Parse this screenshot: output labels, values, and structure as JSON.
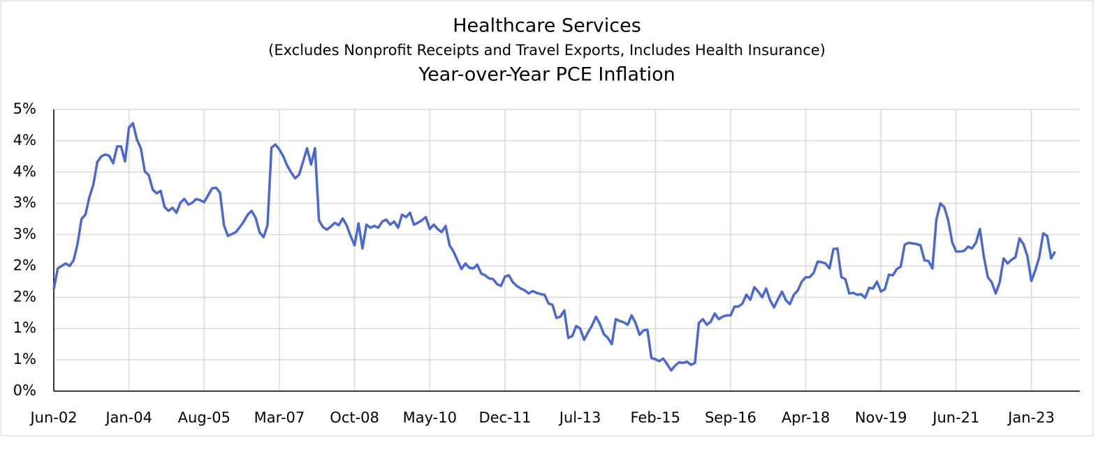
{
  "chart_data": {
    "type": "line",
    "title": "Healthcare Services",
    "subtitle": "(Excludes Nonprofit Receipts and Travel Exports, Includes Health Insurance)",
    "subtitle_2": "Year-over-Year PCE Inflation",
    "categories": [
      "Jun-02",
      null,
      null,
      null,
      null,
      null,
      null,
      null,
      null,
      null,
      null,
      null,
      null,
      null,
      null,
      null,
      null,
      null,
      null,
      "Jan-04",
      null,
      null,
      null,
      null,
      null,
      null,
      null,
      null,
      null,
      null,
      null,
      null,
      null,
      null,
      null,
      null,
      null,
      null,
      "Aug-05",
      null,
      null,
      null,
      null,
      null,
      null,
      null,
      null,
      null,
      null,
      null,
      null,
      null,
      null,
      null,
      null,
      null,
      null,
      "Mar-07",
      null,
      null,
      null,
      null,
      null,
      null,
      null,
      null,
      null,
      null,
      null,
      null,
      null,
      null,
      null,
      null,
      null,
      null,
      "Oct-08",
      null,
      null,
      null,
      null,
      null,
      null,
      null,
      null,
      null,
      null,
      null,
      null,
      null,
      null,
      null,
      null,
      null,
      null,
      "May-10",
      null,
      null,
      null,
      null,
      null,
      null,
      null,
      null,
      null,
      null,
      null,
      null,
      null,
      null,
      null,
      null,
      null,
      null,
      "Dec-11",
      null,
      null,
      null,
      null,
      null,
      null,
      null,
      null,
      null,
      null,
      null,
      null,
      null,
      null,
      null,
      null,
      null,
      null,
      "Jul-13",
      null,
      null,
      null,
      null,
      null,
      null,
      null,
      null,
      null,
      null,
      null,
      null,
      null,
      null,
      null,
      null,
      null,
      null,
      "Feb-15",
      null,
      null,
      null,
      null,
      null,
      null,
      null,
      null,
      null,
      null,
      null,
      null,
      null,
      null,
      null,
      null,
      null,
      null,
      "Sep-16",
      null,
      null,
      null,
      null,
      null,
      null,
      null,
      null,
      null,
      null,
      null,
      null,
      null,
      null,
      null,
      null,
      null,
      null,
      "Apr-18",
      null,
      null,
      null,
      null,
      null,
      null,
      null,
      null,
      null,
      null,
      null,
      null,
      null,
      null,
      null,
      null,
      null,
      null,
      "Nov-19",
      null,
      null,
      null,
      null,
      null,
      null,
      null,
      null,
      null,
      null,
      null,
      null,
      null,
      null,
      null,
      null,
      null,
      null,
      "Jun-21",
      null,
      null,
      null,
      null,
      null,
      null,
      null,
      null,
      null,
      null,
      null,
      null,
      null,
      null,
      null,
      null,
      null,
      null,
      "Jan-23",
      null,
      null,
      null,
      null,
      null,
      null
    ],
    "values": [
      1.63,
      1.96,
      2.0,
      2.04,
      2.0,
      2.09,
      2.35,
      2.75,
      2.82,
      3.1,
      3.3,
      3.66,
      3.75,
      3.78,
      3.76,
      3.64,
      3.91,
      3.91,
      3.67,
      4.21,
      4.28,
      4.02,
      3.88,
      3.51,
      3.45,
      3.22,
      3.16,
      3.2,
      2.94,
      2.88,
      2.93,
      2.85,
      3.01,
      3.07,
      2.98,
      3.01,
      3.07,
      3.05,
      3.02,
      3.13,
      3.24,
      3.25,
      3.17,
      2.65,
      2.48,
      2.51,
      2.54,
      2.62,
      2.71,
      2.82,
      2.88,
      2.77,
      2.54,
      2.46,
      2.65,
      3.89,
      3.94,
      3.86,
      3.75,
      3.6,
      3.49,
      3.4,
      3.46,
      3.67,
      3.88,
      3.62,
      3.88,
      2.73,
      2.62,
      2.58,
      2.63,
      2.69,
      2.65,
      2.76,
      2.65,
      2.48,
      2.33,
      2.68,
      2.28,
      2.66,
      2.61,
      2.64,
      2.61,
      2.71,
      2.74,
      2.66,
      2.71,
      2.61,
      2.82,
      2.78,
      2.85,
      2.66,
      2.69,
      2.73,
      2.78,
      2.59,
      2.66,
      2.59,
      2.54,
      2.64,
      2.33,
      2.23,
      2.09,
      1.95,
      2.04,
      1.97,
      1.96,
      2.02,
      1.88,
      1.85,
      1.8,
      1.79,
      1.71,
      1.68,
      1.83,
      1.85,
      1.74,
      1.68,
      1.64,
      1.61,
      1.56,
      1.6,
      1.57,
      1.55,
      1.54,
      1.4,
      1.38,
      1.17,
      1.19,
      1.29,
      0.85,
      0.88,
      1.04,
      1.0,
      0.82,
      0.94,
      1.05,
      1.19,
      1.07,
      0.91,
      0.85,
      0.75,
      1.15,
      1.12,
      1.1,
      1.06,
      1.21,
      1.09,
      0.9,
      0.97,
      0.98,
      0.53,
      0.51,
      0.48,
      0.52,
      0.43,
      0.33,
      0.41,
      0.46,
      0.45,
      0.47,
      0.42,
      0.45,
      1.09,
      1.15,
      1.06,
      1.11,
      1.24,
      1.15,
      1.19,
      1.21,
      1.21,
      1.35,
      1.35,
      1.4,
      1.54,
      1.46,
      1.66,
      1.59,
      1.5,
      1.64,
      1.45,
      1.34,
      1.47,
      1.59,
      1.45,
      1.39,
      1.54,
      1.61,
      1.75,
      1.82,
      1.82,
      1.89,
      2.07,
      2.06,
      2.04,
      1.96,
      2.27,
      2.28,
      1.82,
      1.79,
      1.56,
      1.57,
      1.54,
      1.55,
      1.49,
      1.65,
      1.64,
      1.75,
      1.59,
      1.63,
      1.86,
      1.85,
      1.95,
      1.99,
      2.34,
      2.37,
      2.36,
      2.35,
      2.33,
      2.09,
      2.08,
      1.96,
      2.74,
      3.0,
      2.94,
      2.73,
      2.38,
      2.23,
      2.23,
      2.24,
      2.31,
      2.28,
      2.37,
      2.59,
      2.15,
      1.82,
      1.74,
      1.56,
      1.74,
      2.12,
      2.04,
      2.1,
      2.14,
      2.44,
      2.35,
      2.16,
      1.76,
      1.93,
      2.14,
      2.52,
      2.48,
      2.12,
      2.23
    ],
    "color": "#4a68cf",
    "ylim": [
      0,
      4.5
    ],
    "yticks": [
      {
        "value": 0,
        "label": "0%"
      },
      {
        "value": 0.5,
        "label": "1%"
      },
      {
        "value": 1,
        "label": "1%"
      },
      {
        "value": 1.5,
        "label": "2%"
      },
      {
        "value": 2,
        "label": "2%"
      },
      {
        "value": 2.5,
        "label": "3%"
      },
      {
        "value": 3,
        "label": "3%"
      },
      {
        "value": 3.5,
        "label": "4%"
      },
      {
        "value": 4,
        "label": "4%"
      },
      {
        "value": 4.5,
        "label": "5%"
      }
    ],
    "grid": true
  }
}
